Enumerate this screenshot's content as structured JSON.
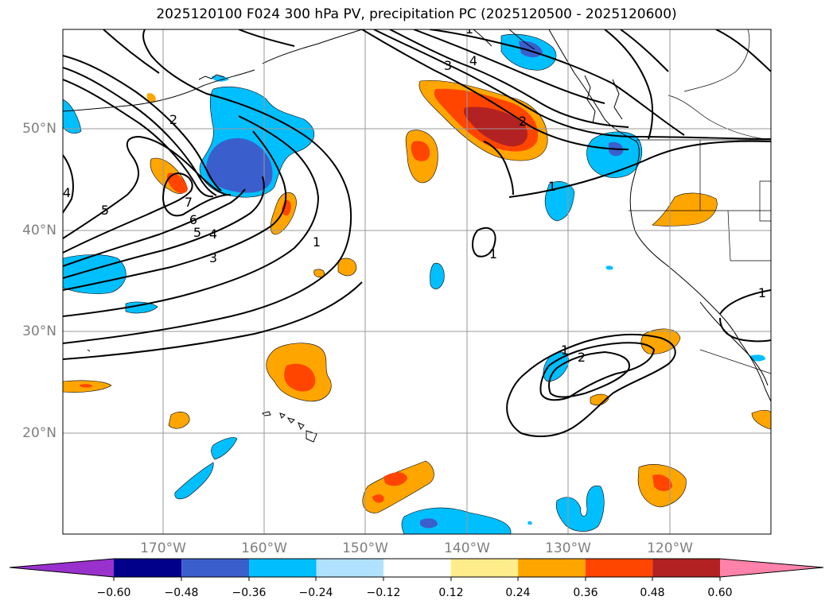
{
  "title": "2025120100 F024 300 hPa PV, precipitation PC (2025120500 - 2025120600)",
  "map": {
    "lon_labels": [
      "170°W",
      "160°W",
      "150°W",
      "140°W",
      "130°W",
      "120°W"
    ],
    "lat_labels": [
      "50°N",
      "40°N",
      "30°N",
      "20°N"
    ],
    "contour_labels": [
      "2",
      "3",
      "4",
      "5",
      "4",
      "1",
      "7",
      "6",
      "5",
      "4",
      "3",
      "1",
      "2",
      "1",
      "1",
      "1",
      "2",
      "1"
    ]
  },
  "colorbar": {
    "ticks": [
      "−0.60",
      "−0.48",
      "−0.36",
      "−0.24",
      "−0.12",
      "0.12",
      "0.24",
      "0.36",
      "0.48",
      "0.60"
    ],
    "colors": [
      "#9932cc",
      "#00008b",
      "#3a5fcd",
      "#00bfff",
      "#b0e2ff",
      "#ffffff",
      "#ffec8b",
      "#ffa500",
      "#ff4500",
      "#b22222",
      "#ff82ab"
    ]
  }
}
